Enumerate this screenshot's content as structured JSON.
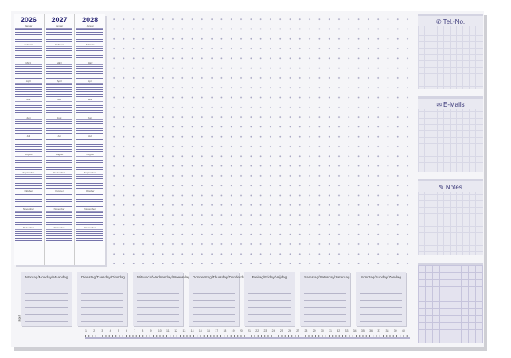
{
  "calendar": {
    "years": [
      "2026",
      "2027",
      "2028"
    ],
    "months": [
      "Januar",
      "Februar",
      "März",
      "April",
      "Mai",
      "Juni",
      "Juli",
      "August",
      "September",
      "Oktober",
      "November",
      "Dezember"
    ]
  },
  "panels": [
    {
      "label": "Tel.-No.",
      "icon": "phone-icon",
      "glyph": "✆"
    },
    {
      "label": "E-Mails",
      "icon": "envelope-icon",
      "glyph": "✉"
    },
    {
      "label": "Notes",
      "icon": "pencil-icon",
      "glyph": "✎"
    }
  ],
  "weekdays": [
    "Montag/Monday/Maandag",
    "Dienstag/Tuesday/Dinsdag",
    "Mittwoch/Wednesday/Woensdag",
    "Donnerstag/Thursday/Donderdag",
    "Freitag/Friday/Vrijdag",
    "Samstag/Saturday/Zaterdag",
    "Sonntag/Sunday/Zondag"
  ],
  "ruler": {
    "labels": [
      "1",
      "2",
      "3",
      "4",
      "5",
      "6",
      "7",
      "8",
      "9",
      "10",
      "11",
      "12",
      "13",
      "14",
      "15",
      "16",
      "17",
      "18",
      "19",
      "20",
      "21",
      "22",
      "23",
      "24",
      "25",
      "26",
      "27",
      "28",
      "29",
      "30",
      "31",
      "32",
      "33",
      "34",
      "35",
      "36",
      "37",
      "38",
      "39",
      "40"
    ]
  },
  "brand": "sigel",
  "colors": {
    "accent": "#3c3a7a",
    "panel": "#e6e6ef"
  }
}
